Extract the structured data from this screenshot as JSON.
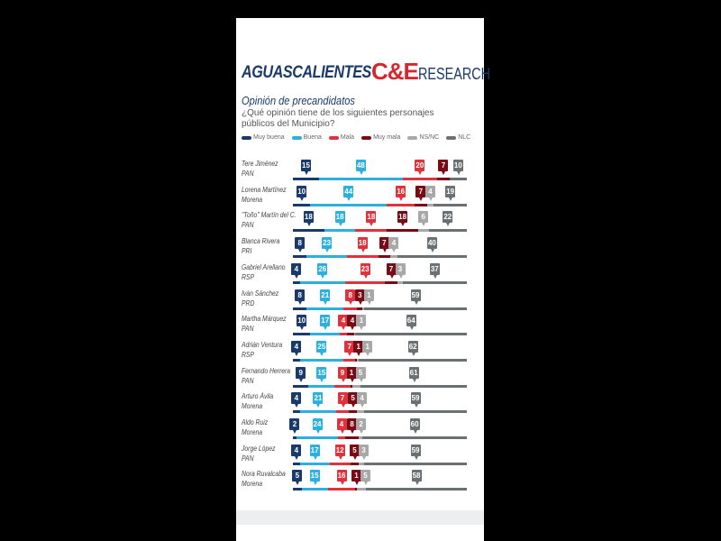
{
  "header": {
    "title": "AGUASCALIENTES",
    "logo_text": "C&E",
    "logo_suffix": "RESEARCH"
  },
  "subtitle": "Opinión de precandidatos",
  "question": "¿Qué opinión tiene de los siguientes personajes públicos del Municipio?",
  "chart_data": {
    "type": "bar",
    "orientation": "horizontal-stacked",
    "unit": "%",
    "legend_position": "top",
    "series": [
      {
        "name": "Muy buena",
        "color": "#1a3a6b"
      },
      {
        "name": "Buena",
        "color": "#2bb0e0"
      },
      {
        "name": "Mala",
        "color": "#e0323c"
      },
      {
        "name": "Muy mala",
        "color": "#7a0a14"
      },
      {
        "name": "NS/NC",
        "color": "#a8a8a8"
      },
      {
        "name": "NLC",
        "color": "#6b7072"
      }
    ],
    "rows": [
      {
        "name": "Tere Jiménez",
        "party": "PAN",
        "values": [
          15,
          48,
          20,
          7,
          null,
          10
        ]
      },
      {
        "name": "Lorena Martínez",
        "party": "Morena",
        "values": [
          10,
          44,
          16,
          7,
          4,
          19
        ]
      },
      {
        "name": "\"Toño\" Martín del C.",
        "party": "PAN",
        "values": [
          18,
          18,
          18,
          18,
          6,
          22
        ]
      },
      {
        "name": "Blanca Rivera",
        "party": "PRI",
        "values": [
          8,
          23,
          18,
          7,
          4,
          40
        ]
      },
      {
        "name": "Gabriel Arellano",
        "party": "RSP",
        "values": [
          4,
          26,
          23,
          7,
          3,
          37
        ]
      },
      {
        "name": "Iván Sánchez",
        "party": "PRD",
        "values": [
          8,
          21,
          8,
          3,
          1,
          59
        ]
      },
      {
        "name": "Martha Márquez",
        "party": "PAN",
        "values": [
          10,
          17,
          4,
          4,
          1,
          64
        ]
      },
      {
        "name": "Adrián Ventura",
        "party": "RSP",
        "values": [
          4,
          25,
          7,
          1,
          1,
          62
        ]
      },
      {
        "name": "Fernando Herrera",
        "party": "PAN",
        "values": [
          9,
          15,
          9,
          1,
          5,
          61
        ]
      },
      {
        "name": "Arturo Ávila",
        "party": "Morena",
        "values": [
          4,
          21,
          7,
          5,
          4,
          59
        ]
      },
      {
        "name": "Aldo Ruiz",
        "party": "Morena",
        "values": [
          2,
          24,
          4,
          8,
          2,
          60
        ]
      },
      {
        "name": "Jorge López",
        "party": "PAN",
        "values": [
          4,
          17,
          12,
          5,
          3,
          59
        ]
      },
      {
        "name": "Nora Ruvalcaba",
        "party": "Morena",
        "values": [
          5,
          15,
          16,
          1,
          5,
          58
        ]
      }
    ]
  }
}
